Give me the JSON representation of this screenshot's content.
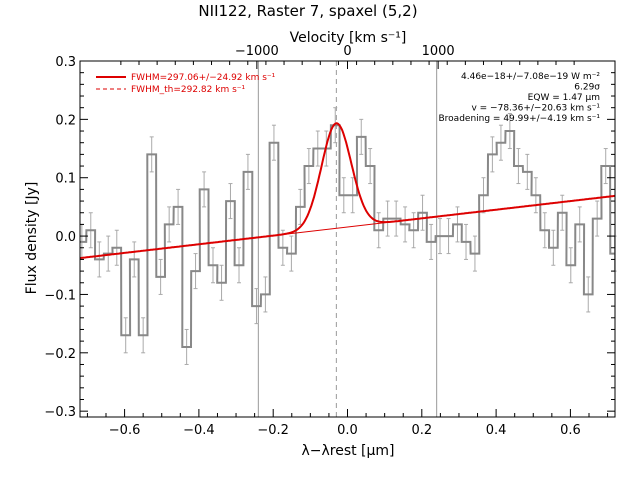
{
  "chart_data": {
    "type": "line",
    "title": "NII122, Raster 7, spaxel (5,2)",
    "xlabel": "λ−λrest [μm]",
    "ylabel": "Flux density [Jy]",
    "top_axis_label": "Velocity [km s⁻¹]",
    "xlim": [
      -0.72,
      0.72
    ],
    "ylim": [
      -0.31,
      0.3
    ],
    "x_ticks": [
      -0.6,
      -0.4,
      -0.2,
      0.0,
      0.2,
      0.4,
      0.6
    ],
    "x_tick_labels": [
      "−0.6",
      "−0.4",
      "−0.2",
      "0.0",
      "0.2",
      "0.4",
      "0.6"
    ],
    "y_ticks": [
      -0.3,
      -0.2,
      -0.1,
      0.0,
      0.1,
      0.2,
      0.3
    ],
    "y_tick_labels": [
      "−0.3",
      "−0.2",
      "−0.1",
      "0.0",
      "0.1",
      "0.2",
      "0.3"
    ],
    "top_ticks": [
      -1000,
      0,
      1000
    ],
    "top_tick_labels": [
      "−1000",
      "0",
      "1000"
    ],
    "um_per_kms": 0.000244,
    "vlines_solid": [
      -0.24,
      0.24
    ],
    "vline_dashed": -0.03,
    "spectrum": {
      "bin_width": 0.0235,
      "x": [
        -0.715,
        -0.691,
        -0.668,
        -0.644,
        -0.621,
        -0.597,
        -0.574,
        -0.55,
        -0.527,
        -0.503,
        -0.48,
        -0.456,
        -0.433,
        -0.409,
        -0.386,
        -0.362,
        -0.339,
        -0.315,
        -0.292,
        -0.268,
        -0.245,
        -0.221,
        -0.198,
        -0.174,
        -0.151,
        -0.127,
        -0.104,
        -0.08,
        -0.057,
        -0.033,
        -0.01,
        0.014,
        0.037,
        0.061,
        0.084,
        0.108,
        0.131,
        0.155,
        0.178,
        0.202,
        0.225,
        0.249,
        0.272,
        0.296,
        0.319,
        0.343,
        0.366,
        0.39,
        0.413,
        0.437,
        0.46,
        0.484,
        0.507,
        0.531,
        0.554,
        0.578,
        0.601,
        0.625,
        0.648,
        0.672,
        0.695,
        0.719
      ],
      "y": [
        -0.01,
        0.01,
        -0.04,
        -0.03,
        -0.02,
        -0.17,
        -0.04,
        -0.17,
        0.14,
        -0.07,
        0.02,
        0.05,
        -0.19,
        -0.06,
        0.08,
        -0.05,
        -0.08,
        0.06,
        -0.05,
        0.11,
        -0.12,
        -0.1,
        0.16,
        -0.02,
        -0.03,
        0.05,
        0.12,
        0.15,
        0.15,
        0.19,
        0.07,
        0.07,
        0.17,
        0.12,
        0.01,
        0.03,
        0.03,
        0.02,
        0.01,
        0.04,
        -0.01,
        0.0,
        0.0,
        0.02,
        -0.01,
        -0.03,
        0.07,
        0.14,
        0.16,
        0.18,
        0.12,
        0.11,
        0.07,
        0.01,
        -0.02,
        0.04,
        -0.05,
        0.02,
        -0.1,
        0.03,
        0.12,
        -0.03
      ],
      "err": [
        0.03,
        0.03,
        0.03,
        0.03,
        0.03,
        0.03,
        0.03,
        0.03,
        0.03,
        0.03,
        0.03,
        0.03,
        0.03,
        0.03,
        0.03,
        0.03,
        0.03,
        0.03,
        0.03,
        0.03,
        0.03,
        0.03,
        0.03,
        0.03,
        0.03,
        0.03,
        0.03,
        0.03,
        0.03,
        0.03,
        0.03,
        0.03,
        0.03,
        0.03,
        0.03,
        0.03,
        0.03,
        0.03,
        0.03,
        0.03,
        0.03,
        0.03,
        0.03,
        0.03,
        0.03,
        0.03,
        0.03,
        0.03,
        0.03,
        0.03,
        0.03,
        0.03,
        0.03,
        0.03,
        0.03,
        0.03,
        0.03,
        0.03,
        0.03,
        0.03,
        0.03,
        0.03
      ]
    },
    "fit": {
      "center": -0.03,
      "amplitude": 0.18,
      "sigma": 0.04,
      "baseline_slope": 0.074,
      "baseline_intercept": 0.0156
    },
    "legend": [
      {
        "text": "FWHM=297.06+/−24.92 km s⁻¹",
        "style": "solid",
        "color": "#dd0000"
      },
      {
        "text": "FWHM_th=292.82 km s⁻¹",
        "style": "dashed",
        "color": "#dd0000"
      }
    ],
    "legend_position": "top-left",
    "annotations": [
      "4.46e−18+/−7.08e−19 W m⁻²",
      "6.29σ",
      "EQW = 1.47 μm",
      "v = −78.36+/−20.63 km s⁻¹",
      "Broadening = 49.99+/−4.19 km s⁻¹"
    ],
    "annotation_position": "top-right",
    "colors": {
      "spectrum": "#888888",
      "error": "#aaaaaa",
      "fit": "#dd0000",
      "axes": "#000000",
      "vline": "#999999"
    }
  }
}
